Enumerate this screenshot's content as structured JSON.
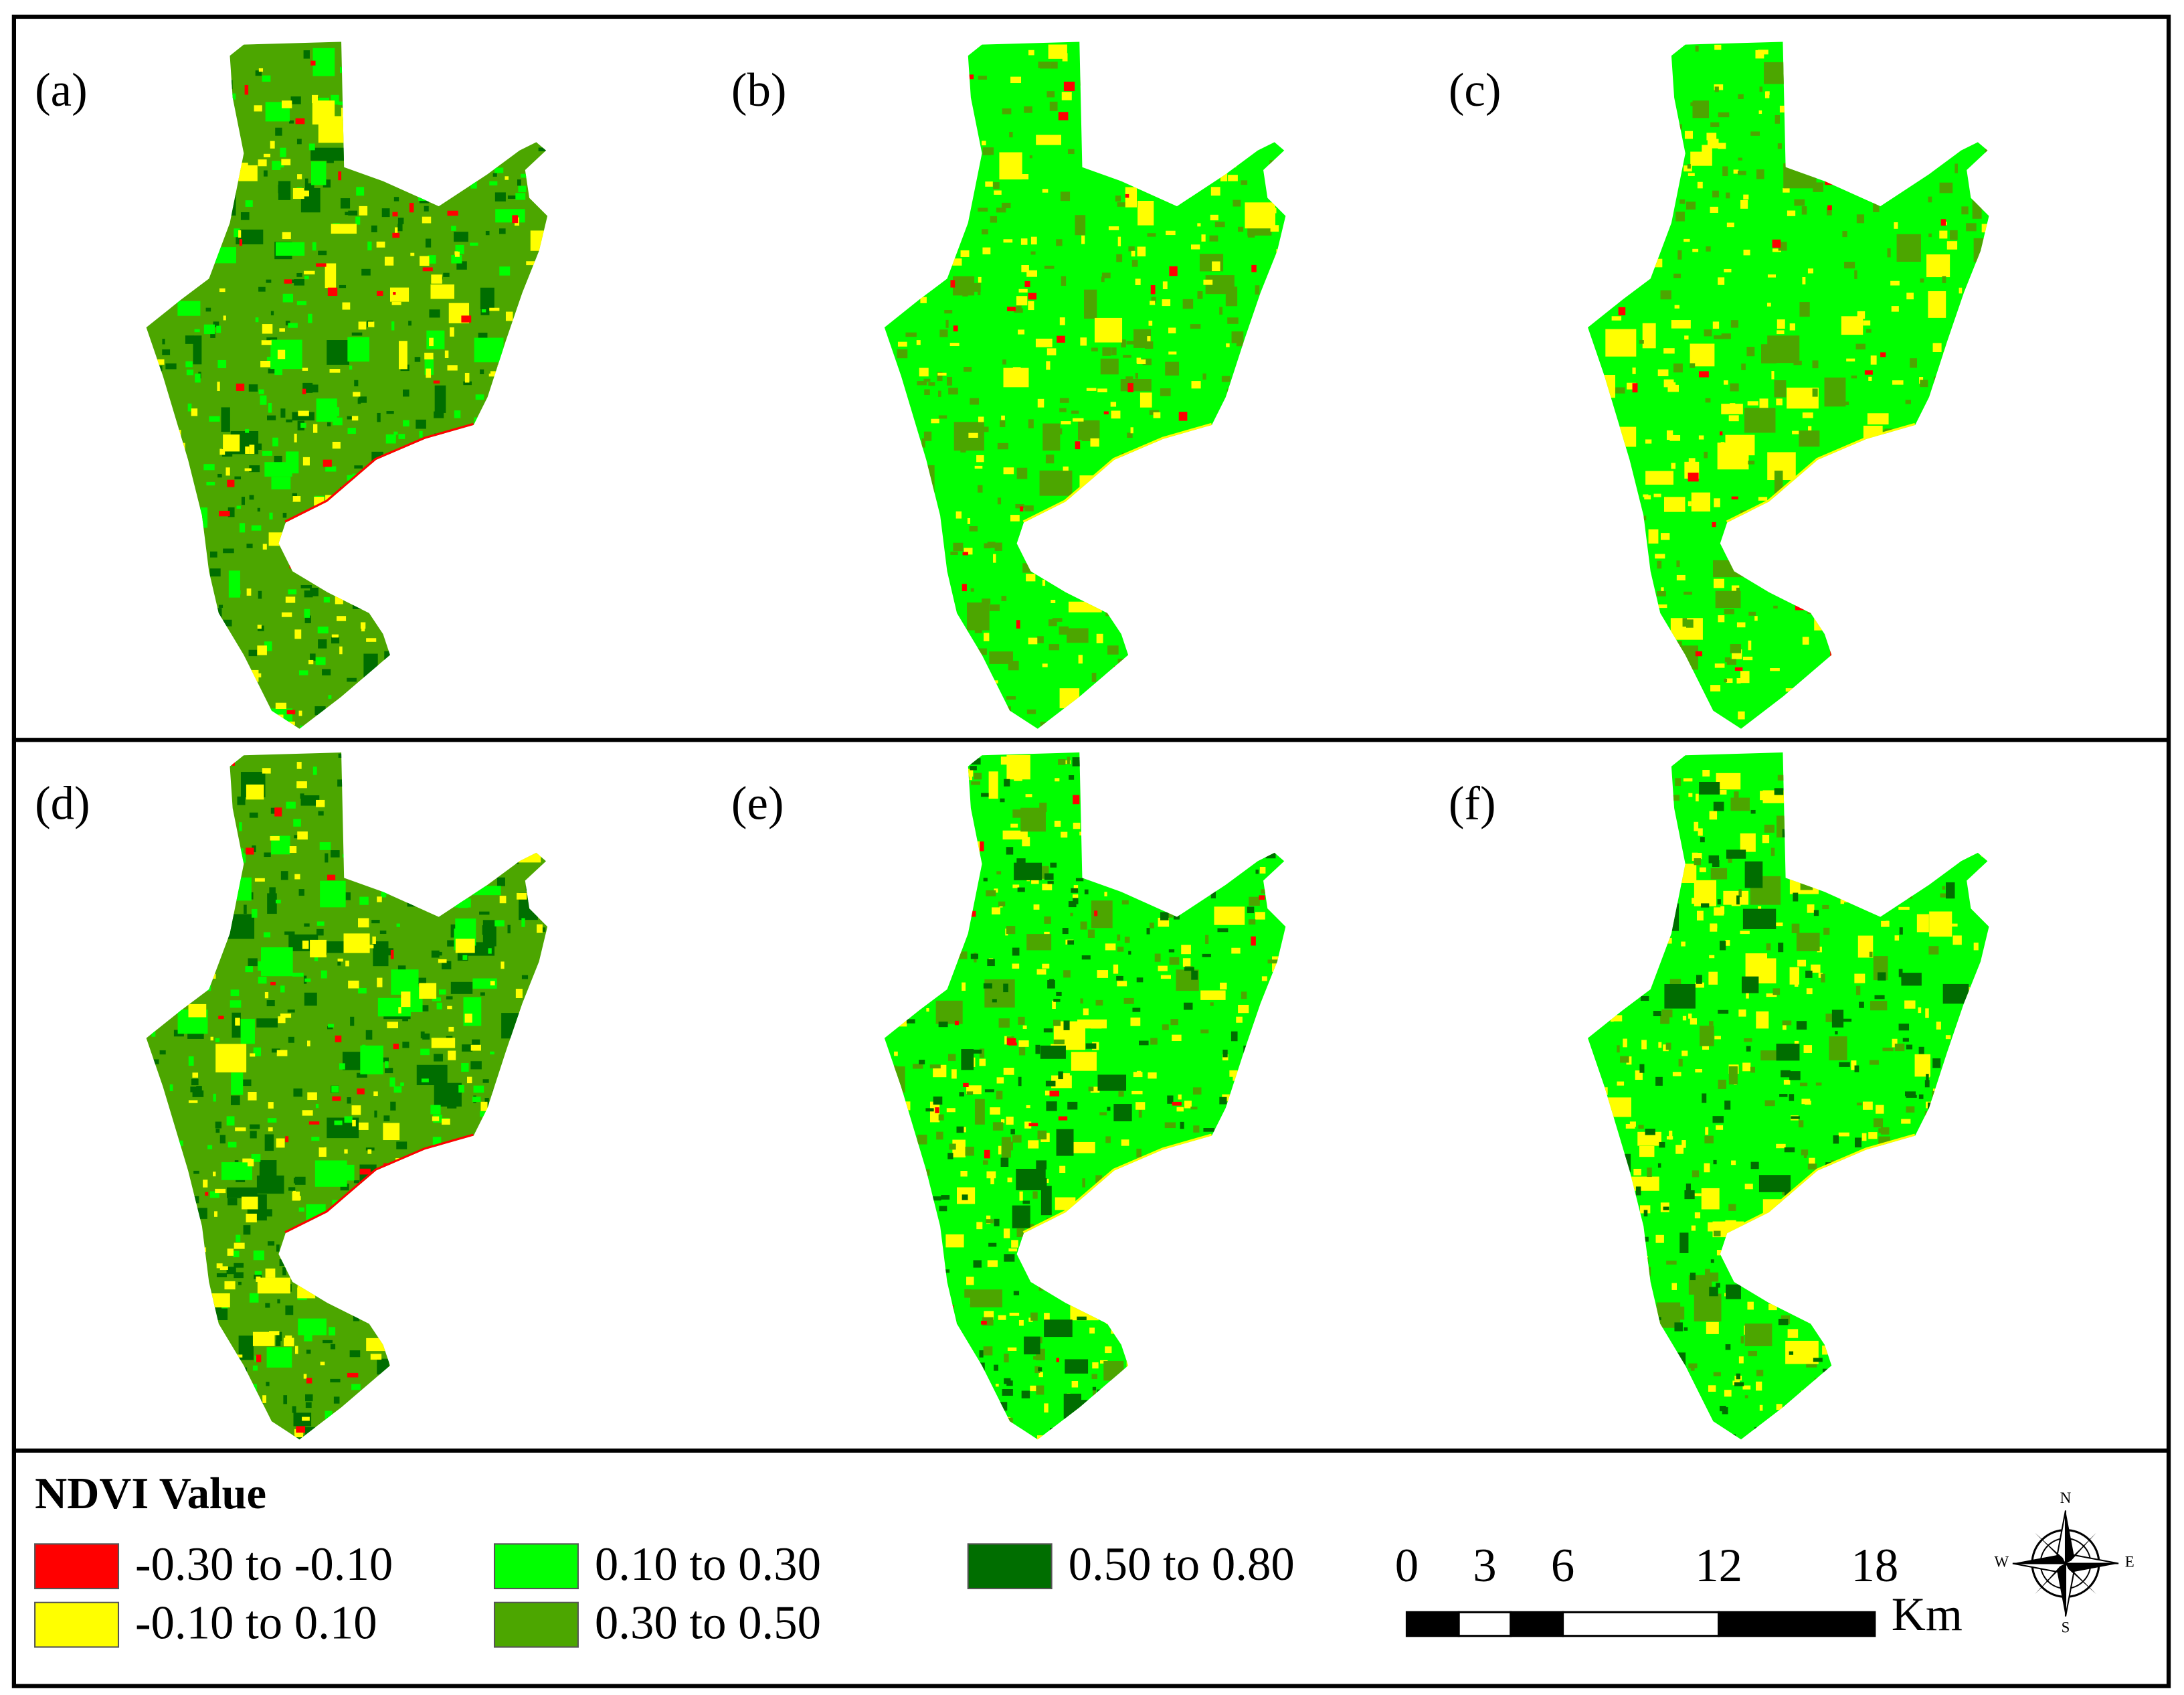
{
  "panels": [
    {
      "label": "(a)"
    },
    {
      "label": "(b)"
    },
    {
      "label": "(c)"
    },
    {
      "label": "(d)"
    },
    {
      "label": "(e)"
    },
    {
      "label": "(f)"
    }
  ],
  "legend": {
    "title": "NDVI Value",
    "items": [
      {
        "label": "-0.30 to -0.10",
        "color": "#ff0000"
      },
      {
        "label": "-0.10 to 0.10",
        "color": "#ffff00"
      },
      {
        "label": "0.10 to 0.30",
        "color": "#00ff00"
      },
      {
        "label": "0.30 to 0.50",
        "color": "#4ca600"
      },
      {
        "label": "0.50 to 0.80",
        "color": "#006e00"
      }
    ]
  },
  "scale_bar": {
    "ticks": [
      0,
      3,
      6,
      12,
      18
    ],
    "unit": "Km"
  },
  "compass": {
    "n": "N",
    "s": "S",
    "e": "E",
    "w": "W"
  }
}
